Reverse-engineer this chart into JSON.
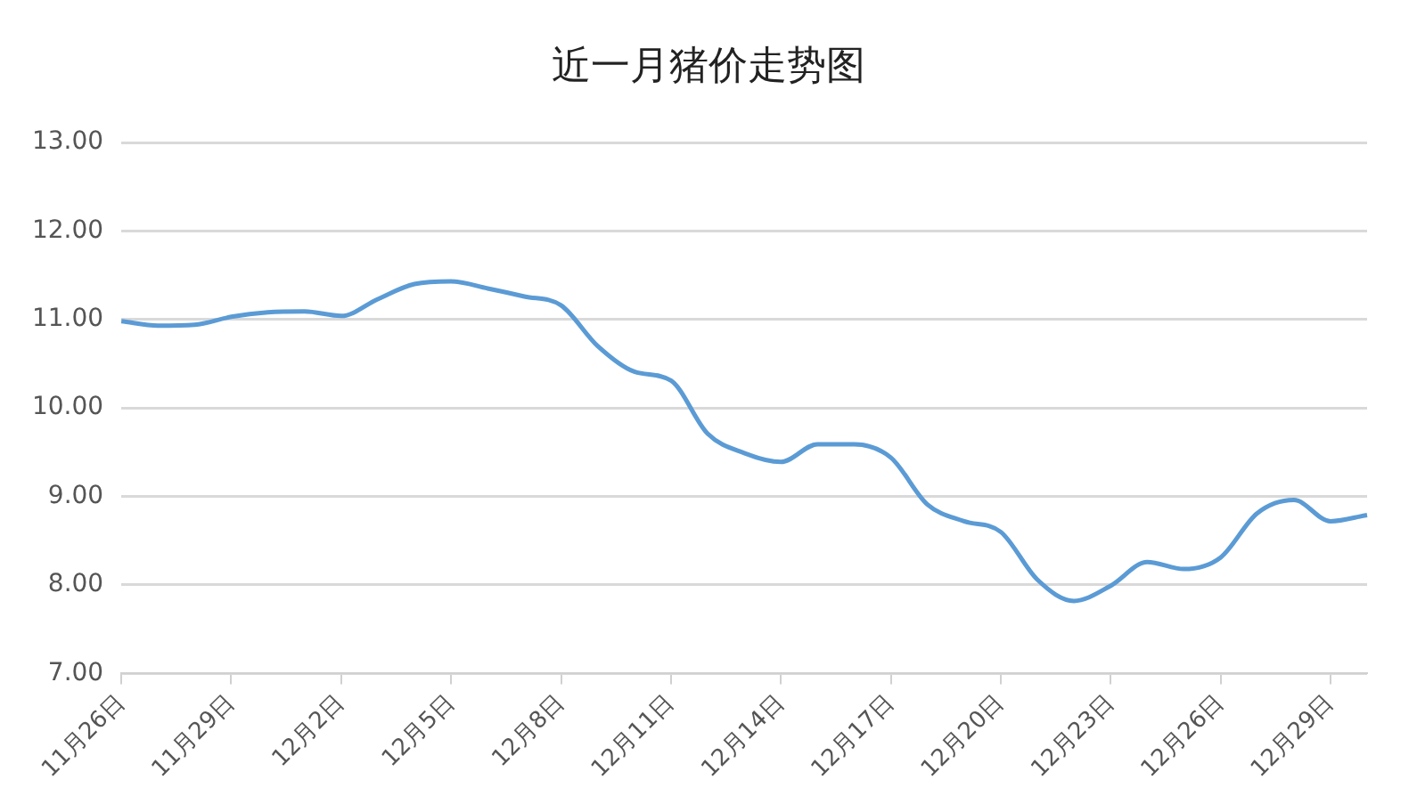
{
  "chart_data": {
    "type": "line",
    "title": "近一月猪价走势图",
    "categories": [
      "11月26日",
      null,
      null,
      "11月29日",
      null,
      null,
      "12月2日",
      null,
      null,
      "12月5日",
      null,
      null,
      "12月8日",
      null,
      null,
      "12月11日",
      null,
      null,
      "12月14日",
      null,
      null,
      "12月17日",
      null,
      null,
      "12月20日",
      null,
      null,
      "12月23日",
      null,
      null,
      "12月26日",
      null,
      null,
      "12月29日",
      null
    ],
    "series": [
      {
        "color": "#5b9bd5",
        "values": [
          10.98,
          10.93,
          10.94,
          11.03,
          11.08,
          11.09,
          11.04,
          11.23,
          11.4,
          11.43,
          11.35,
          11.26,
          11.16,
          10.7,
          10.41,
          10.31,
          9.71,
          9.49,
          9.39,
          9.59,
          9.59,
          9.44,
          8.91,
          8.72,
          8.6,
          8.06,
          7.82,
          7.99,
          8.26,
          8.18,
          8.31,
          8.81,
          8.96,
          8.72,
          8.79
        ]
      }
    ],
    "ylim": [
      7,
      13
    ],
    "yticks": [
      {
        "value": 7,
        "label": "7.00"
      },
      {
        "value": 8,
        "label": "8.00"
      },
      {
        "value": 9,
        "label": "9.00"
      },
      {
        "value": 10,
        "label": "10.00"
      },
      {
        "value": 11,
        "label": "11.00"
      },
      {
        "value": 12,
        "label": "12.00"
      },
      {
        "value": 13,
        "label": "13.00"
      }
    ],
    "grid": "y",
    "legend": false,
    "marker": "none",
    "line_style": "solid"
  }
}
